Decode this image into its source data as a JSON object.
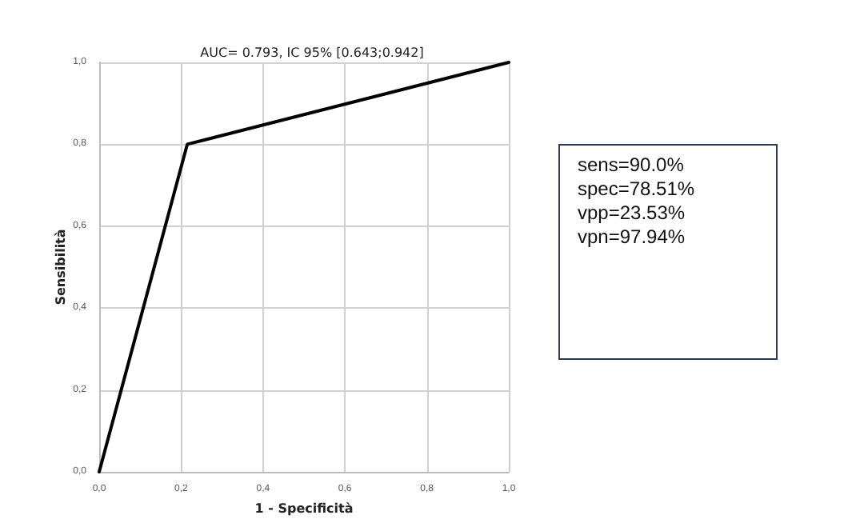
{
  "chart_data": {
    "type": "line",
    "title": "AUC= 0.793, IC 95% [0.643;0.942]",
    "xlabel": "1 - Specificità",
    "ylabel": "Sensibilità",
    "x": [
      0,
      0.215,
      1
    ],
    "series": [
      {
        "color": "#000000",
        "values": [
          0,
          0.8,
          1
        ]
      }
    ],
    "xlim": [
      0,
      1
    ],
    "ylim": [
      0,
      1
    ],
    "xticks": [
      {
        "value": 0,
        "label": "0,0"
      },
      {
        "value": 0.2,
        "label": "0,2"
      },
      {
        "value": 0.4,
        "label": "0,4"
      },
      {
        "value": 0.6,
        "label": "0,6"
      },
      {
        "value": 0.8,
        "label": "0,8"
      },
      {
        "value": 1,
        "label": "1,0"
      }
    ],
    "yticks": [
      {
        "value": 0,
        "label": "0,0"
      },
      {
        "value": 0.2,
        "label": "0,2"
      },
      {
        "value": 0.4,
        "label": "0,4"
      },
      {
        "value": 0.6,
        "label": "0,6"
      },
      {
        "value": 0.8,
        "label": "0,8"
      },
      {
        "value": 1,
        "label": "1,0"
      }
    ],
    "grid": true,
    "marker": "none",
    "line_style": "solid",
    "annotations": [
      "sens=90.0%",
      "spec=78.51%",
      "vpp=23.53%",
      "vpn=97.94%"
    ]
  }
}
